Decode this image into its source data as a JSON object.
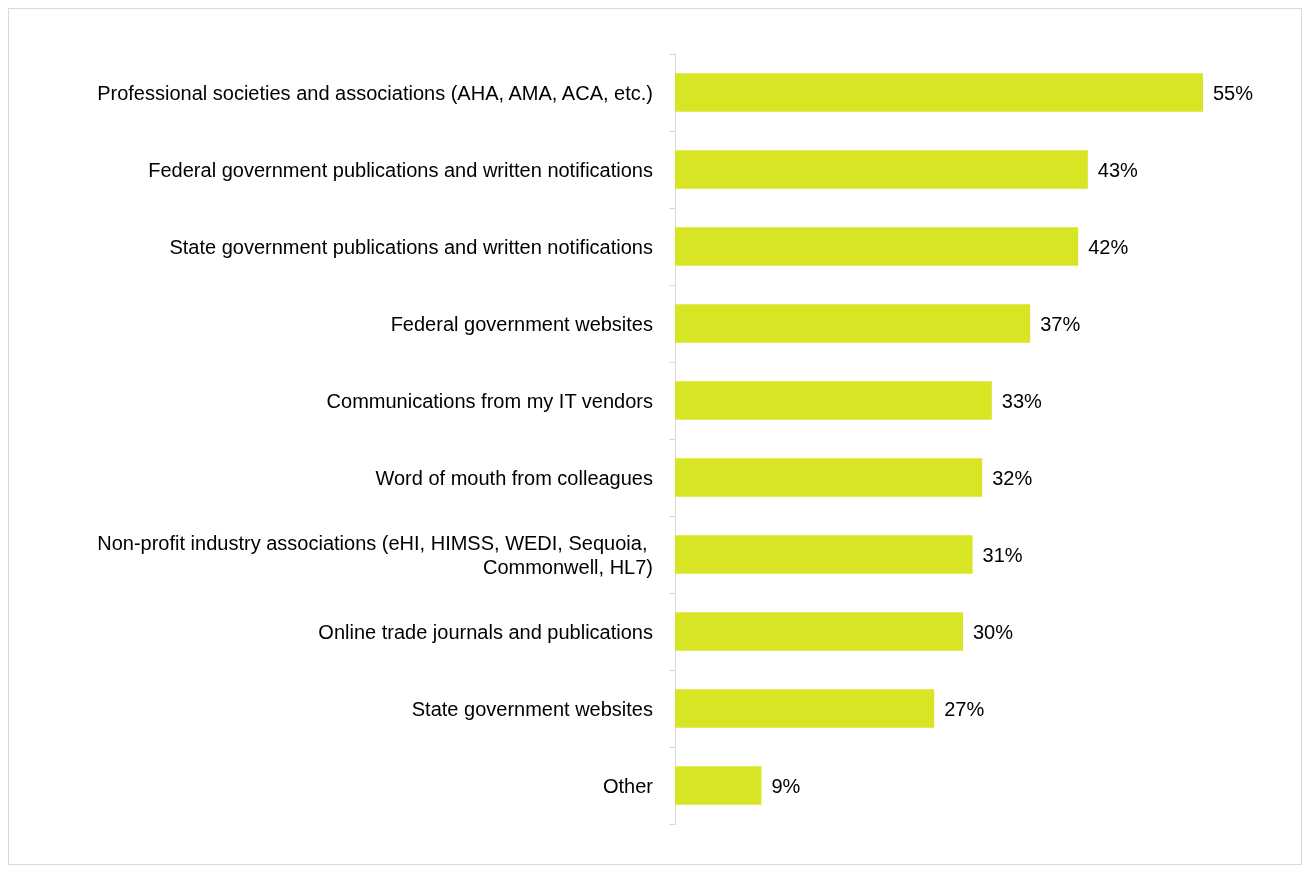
{
  "chart_data": {
    "type": "bar",
    "orientation": "horizontal",
    "categories": [
      "Professional societies and associations (AHA, AMA, ACA, etc.)",
      "Federal government publications and written notifications",
      "State government publications and written notifications",
      "Federal government websites",
      "Communications from my IT vendors",
      "Word of mouth from colleagues",
      "Non-profit industry associations (eHI, HIMSS, WEDI, Sequoia, Commonwell, HL7)",
      "Online trade journals and publications",
      "State government websites",
      "Other"
    ],
    "values": [
      55,
      43,
      42,
      37,
      33,
      32,
      31,
      30,
      27,
      9
    ],
    "value_labels": [
      "55%",
      "43%",
      "42%",
      "37%",
      "33%",
      "32%",
      "31%",
      "30%",
      "27%",
      "9%"
    ],
    "color": "#d8e524",
    "grid": false
  }
}
